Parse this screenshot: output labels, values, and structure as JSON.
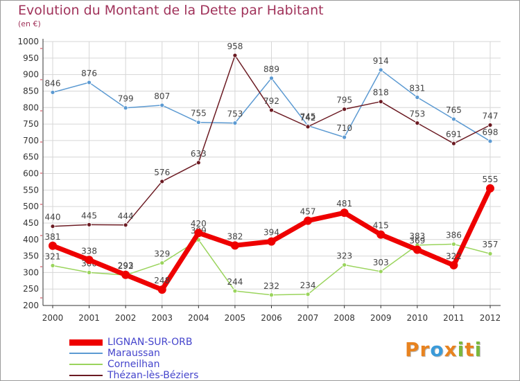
{
  "title": "Evolution du Montant de la Dette par Habitant",
  "subtitle": "(en €)",
  "brand": {
    "text": "Proxiti",
    "letters": [
      {
        "ch": "P",
        "color": "#e8831f"
      },
      {
        "ch": "r",
        "color": "#e8831f"
      },
      {
        "ch": "o",
        "color": "#3a9ad9"
      },
      {
        "ch": "x",
        "color": "#e8831f"
      },
      {
        "ch": "i",
        "color": "#7ab83c"
      },
      {
        "ch": "t",
        "color": "#e8831f"
      },
      {
        "ch": "i",
        "color": "#7ab83c"
      }
    ]
  },
  "chart_data": {
    "type": "line",
    "x": [
      "2000",
      "2001",
      "2002",
      "2003",
      "2004",
      "2005",
      "2006",
      "2007",
      "2008",
      "2009",
      "2010",
      "2011",
      "2012"
    ],
    "ylim": [
      200,
      1000
    ],
    "yticks": [
      "200",
      "250",
      "300",
      "350",
      "400",
      "450",
      "500",
      "550",
      "600",
      "650",
      "700",
      "750",
      "800",
      "850",
      "900",
      "950",
      "1000"
    ],
    "grid": true,
    "legend_position": "bottom-left",
    "series": [
      {
        "name": "Maraussan",
        "color": "#5c9ad2",
        "width": 1.5,
        "marker": 3,
        "values": [
          846,
          876,
          799,
          807,
          755,
          753,
          889,
          745,
          710,
          914,
          831,
          765,
          698
        ]
      },
      {
        "name": "Corneilhan",
        "color": "#9ad45c",
        "width": 1.5,
        "marker": 3,
        "values": [
          321,
          300,
          292,
          329,
          399,
          244,
          232,
          234,
          323,
          303,
          383,
          386,
          357
        ]
      },
      {
        "name": "Thézan-lès-Béziers",
        "color": "#6b1a22",
        "width": 1.5,
        "marker": 3,
        "values": [
          440,
          445,
          444,
          576,
          633,
          958,
          792,
          742,
          795,
          818,
          753,
          691,
          747
        ]
      },
      {
        "name": "LIGNAN-SUR-ORB",
        "color": "#ee0000",
        "width": 7,
        "marker": 6,
        "values": [
          381,
          338,
          293,
          248,
          420,
          382,
          394,
          457,
          481,
          415,
          369,
          322,
          555
        ]
      }
    ]
  }
}
